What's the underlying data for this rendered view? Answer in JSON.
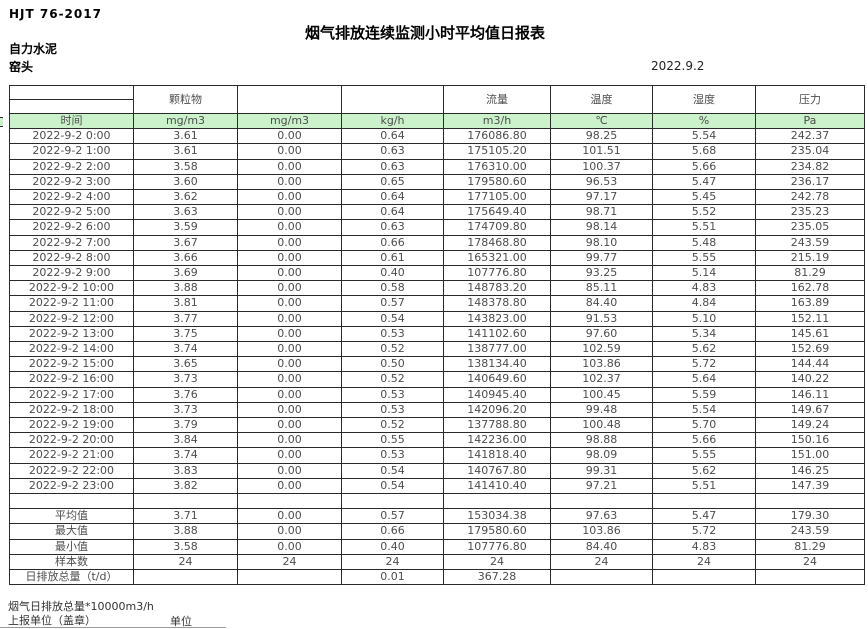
{
  "page": {
    "standard": "HJT 76-2017",
    "title": "烟气排放连续监测小时平均值日报表",
    "company": "自力水泥",
    "station": "窑头",
    "date": "2022.9.2"
  },
  "table": {
    "group_headers": [
      "",
      "颗粒物",
      "",
      "",
      "流量",
      "温度",
      "湿度",
      "压力"
    ],
    "unit_row": [
      "时间",
      "mg/m3",
      "mg/m3",
      "kg/h",
      "m3/h",
      "℃",
      "%",
      "Pa"
    ],
    "rows": [
      [
        "2022-9-2 0:00",
        "3.61",
        "0.00",
        "0.64",
        "176086.80",
        "98.25",
        "5.54",
        "242.37"
      ],
      [
        "2022-9-2 1:00",
        "3.61",
        "0.00",
        "0.63",
        "175105.20",
        "101.51",
        "5.68",
        "235.04"
      ],
      [
        "2022-9-2 2:00",
        "3.58",
        "0.00",
        "0.63",
        "176310.00",
        "100.37",
        "5.66",
        "234.82"
      ],
      [
        "2022-9-2 3:00",
        "3.60",
        "0.00",
        "0.65",
        "179580.60",
        "96.53",
        "5.47",
        "236.17"
      ],
      [
        "2022-9-2 4:00",
        "3.62",
        "0.00",
        "0.64",
        "177105.00",
        "97.17",
        "5.45",
        "242.78"
      ],
      [
        "2022-9-2 5:00",
        "3.63",
        "0.00",
        "0.64",
        "175649.40",
        "98.71",
        "5.52",
        "235.23"
      ],
      [
        "2022-9-2 6:00",
        "3.59",
        "0.00",
        "0.63",
        "174709.80",
        "98.14",
        "5.51",
        "235.05"
      ],
      [
        "2022-9-2 7:00",
        "3.67",
        "0.00",
        "0.66",
        "178468.80",
        "98.10",
        "5.48",
        "243.59"
      ],
      [
        "2022-9-2 8:00",
        "3.66",
        "0.00",
        "0.61",
        "165321.00",
        "99.77",
        "5.55",
        "215.19"
      ],
      [
        "2022-9-2 9:00",
        "3.69",
        "0.00",
        "0.40",
        "107776.80",
        "93.25",
        "5.14",
        "81.29"
      ],
      [
        "2022-9-2 10:00",
        "3.88",
        "0.00",
        "0.58",
        "148783.20",
        "85.11",
        "4.83",
        "162.78"
      ],
      [
        "2022-9-2 11:00",
        "3.81",
        "0.00",
        "0.57",
        "148378.80",
        "84.40",
        "4.84",
        "163.89"
      ],
      [
        "2022-9-2 12:00",
        "3.77",
        "0.00",
        "0.54",
        "143823.00",
        "91.53",
        "5.10",
        "152.11"
      ],
      [
        "2022-9-2 13:00",
        "3.75",
        "0.00",
        "0.53",
        "141102.60",
        "97.60",
        "5.34",
        "145.61"
      ],
      [
        "2022-9-2 14:00",
        "3.74",
        "0.00",
        "0.52",
        "138777.00",
        "102.59",
        "5.62",
        "152.69"
      ],
      [
        "2022-9-2 15:00",
        "3.65",
        "0.00",
        "0.50",
        "138134.40",
        "103.86",
        "5.72",
        "144.44"
      ],
      [
        "2022-9-2 16:00",
        "3.73",
        "0.00",
        "0.52",
        "140649.60",
        "102.37",
        "5.64",
        "140.22"
      ],
      [
        "2022-9-2 17:00",
        "3.76",
        "0.00",
        "0.53",
        "140945.40",
        "100.45",
        "5.59",
        "146.11"
      ],
      [
        "2022-9-2 18:00",
        "3.73",
        "0.00",
        "0.53",
        "142096.20",
        "99.48",
        "5.54",
        "149.67"
      ],
      [
        "2022-9-2 19:00",
        "3.79",
        "0.00",
        "0.52",
        "137788.80",
        "100.48",
        "5.70",
        "149.24"
      ],
      [
        "2022-9-2 20:00",
        "3.84",
        "0.00",
        "0.55",
        "142236.00",
        "98.88",
        "5.66",
        "150.16"
      ],
      [
        "2022-9-2 21:00",
        "3.74",
        "0.00",
        "0.53",
        "141818.40",
        "98.09",
        "5.55",
        "151.00"
      ],
      [
        "2022-9-2 22:00",
        "3.83",
        "0.00",
        "0.54",
        "140767.80",
        "99.31",
        "5.62",
        "146.25"
      ],
      [
        "2022-9-2 23:00",
        "3.82",
        "0.00",
        "0.54",
        "141410.40",
        "97.21",
        "5.51",
        "147.39"
      ]
    ],
    "summary": [
      [
        "平均值",
        "3.71",
        "0.00",
        "0.57",
        "153034.38",
        "97.63",
        "5.47",
        "179.30"
      ],
      [
        "最大值",
        "3.88",
        "0.00",
        "0.66",
        "179580.60",
        "103.86",
        "5.72",
        "243.59"
      ],
      [
        "最小值",
        "3.58",
        "0.00",
        "0.40",
        "107776.80",
        "84.40",
        "4.83",
        "81.29"
      ],
      [
        "样本数",
        "24",
        "24",
        "24",
        "24",
        "24",
        "24",
        "24"
      ],
      [
        "日排放总量（t/d）",
        "",
        "",
        "0.01",
        "367.28",
        "",
        "",
        ""
      ]
    ]
  },
  "footer": {
    "note1": "烟气日排放总量*10000m3/h",
    "note2": "上报单位（盖章）",
    "note3": "单位"
  },
  "colors": {
    "header_green": "#ccf2cc",
    "border": "#2a2a2a",
    "cell_text": "#4d4d4d",
    "heading_text": "#000000"
  }
}
